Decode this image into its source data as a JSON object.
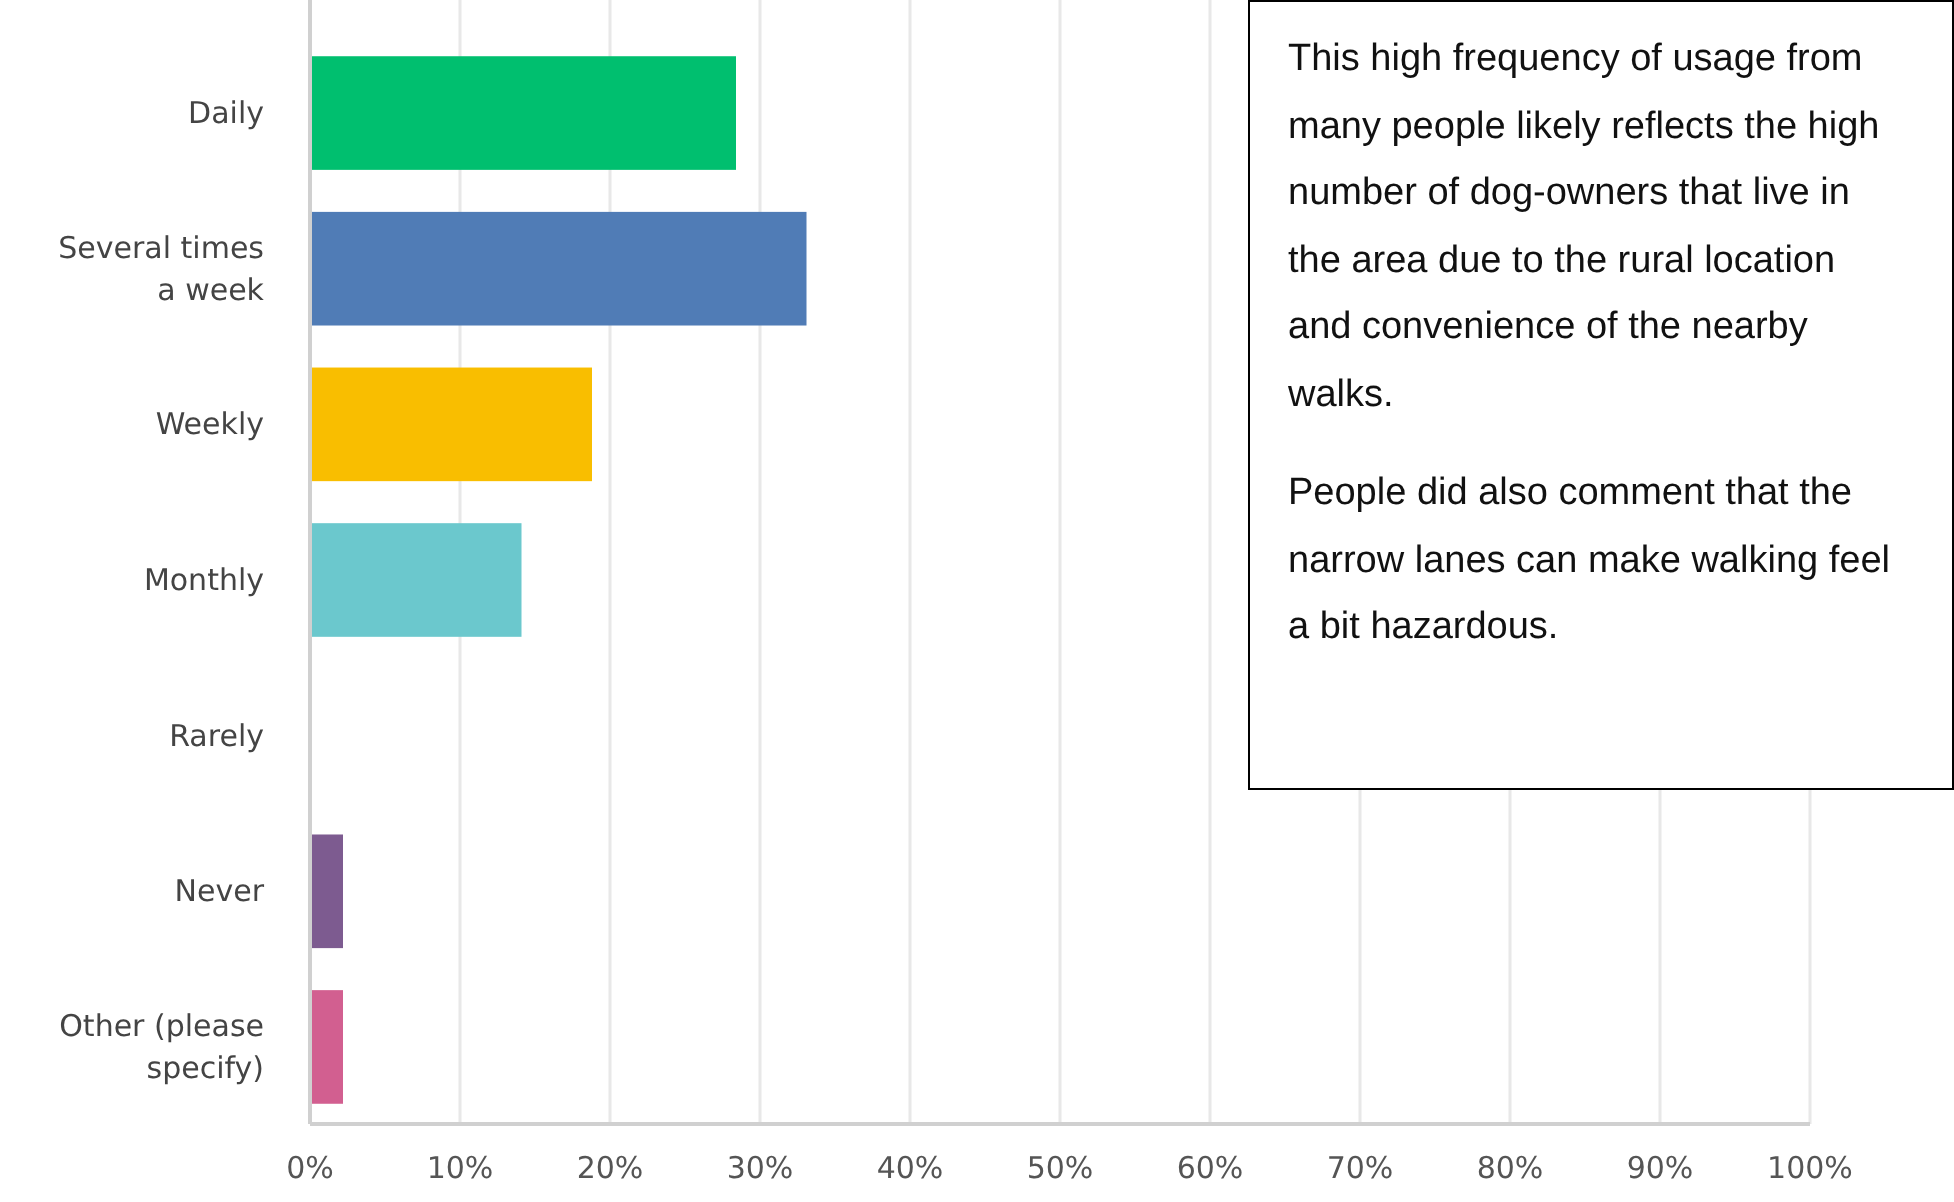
{
  "chart_data": {
    "type": "bar",
    "orientation": "horizontal",
    "categories": [
      "Daily",
      "Several times a week",
      "Weekly",
      "Monthly",
      "Rarely",
      "Never",
      "Other (please specify)"
    ],
    "values": [
      28.4,
      33.1,
      18.8,
      14.1,
      0,
      2.2,
      2.2
    ],
    "colors": [
      "#00bf6f",
      "#507cb6",
      "#f9be00",
      "#6bc8cd",
      "#f05b24",
      "#7d5b90",
      "#d25f90"
    ],
    "xlim": [
      0,
      100
    ],
    "xticks": [
      {
        "value": 0,
        "label": "0%"
      },
      {
        "value": 10,
        "label": "10%"
      },
      {
        "value": 20,
        "label": "20%"
      },
      {
        "value": 30,
        "label": "30%"
      },
      {
        "value": 40,
        "label": "40%"
      },
      {
        "value": 50,
        "label": "50%"
      },
      {
        "value": 60,
        "label": "60%"
      },
      {
        "value": 70,
        "label": "70%"
      },
      {
        "value": 80,
        "label": "80%"
      },
      {
        "value": 90,
        "label": "90%"
      },
      {
        "value": 100,
        "label": "100%"
      }
    ],
    "grid": "x",
    "annotations": [
      "This high frequency of usage from many people likely reflects the high number of dog-owners that live in the area due to the rural location and convenience of the nearby walks.",
      "People did also comment that the narrow lanes can make walking feel a bit hazardous."
    ]
  }
}
